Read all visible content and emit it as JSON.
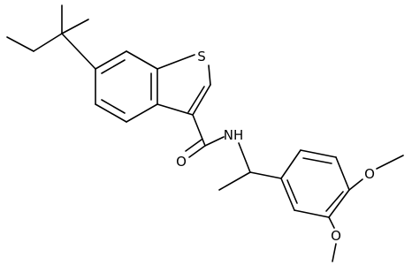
{
  "atoms": [
    {
      "label": "S"
    },
    {
      "label": "O"
    },
    {
      "label": "NH"
    },
    {
      "label": "O"
    },
    {
      "label": "O"
    }
  ]
}
